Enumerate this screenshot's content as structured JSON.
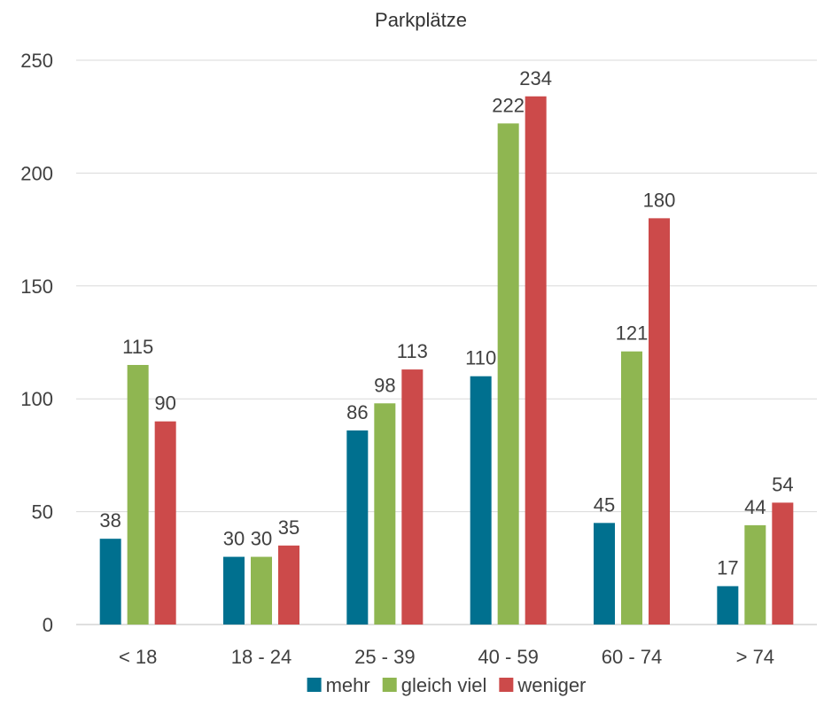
{
  "chart_data": {
    "type": "bar",
    "title": "Parkplätze",
    "xlabel": "",
    "ylabel": "",
    "categories": [
      "< 18",
      "18 - 24",
      "25 - 39",
      "40 - 59",
      "60 - 74",
      "> 74"
    ],
    "series": [
      {
        "name": "mehr",
        "color": "#00708f",
        "values": [
          38,
          30,
          86,
          110,
          45,
          17
        ]
      },
      {
        "name": "gleich viel",
        "color": "#8fb651",
        "values": [
          115,
          30,
          98,
          222,
          121,
          44
        ]
      },
      {
        "name": "weniger",
        "color": "#cc4a4a",
        "values": [
          90,
          35,
          113,
          234,
          180,
          54
        ]
      }
    ],
    "ylim": [
      0,
      250
    ],
    "yticks": [
      0,
      50,
      100,
      150,
      200,
      250
    ],
    "grid": true,
    "legend_position": "bottom",
    "data_labels": true
  }
}
